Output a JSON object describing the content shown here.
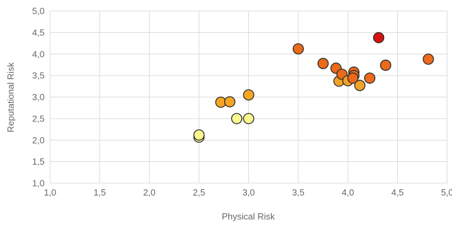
{
  "chart_data": {
    "type": "scatter",
    "title": "",
    "xlabel": "Physical Risk",
    "ylabel": "Reputational Risk",
    "xlim": [
      1.0,
      5.0
    ],
    "ylim": [
      1.0,
      5.0
    ],
    "grid": true,
    "x_ticks": [
      "1,0",
      "1,5",
      "2,0",
      "2,5",
      "3,0",
      "3,5",
      "4,0",
      "4,5",
      "5,0"
    ],
    "y_ticks": [
      "1,0",
      "1,5",
      "2,0",
      "2,5",
      "3,0",
      "3,5",
      "4,0",
      "4,5",
      "5,0"
    ],
    "points": [
      {
        "x": 2.5,
        "y": 2.07,
        "color": "#f0ee9a"
      },
      {
        "x": 2.5,
        "y": 2.12,
        "color": "#fbf78f"
      },
      {
        "x": 2.72,
        "y": 2.88,
        "color": "#f6a623"
      },
      {
        "x": 2.81,
        "y": 2.89,
        "color": "#f6a623"
      },
      {
        "x": 2.88,
        "y": 2.5,
        "color": "#fbf78f"
      },
      {
        "x": 3.0,
        "y": 2.5,
        "color": "#fbf78f"
      },
      {
        "x": 3.0,
        "y": 3.05,
        "color": "#f6a623"
      },
      {
        "x": 3.5,
        "y": 4.12,
        "color": "#ec6a1a"
      },
      {
        "x": 3.75,
        "y": 3.78,
        "color": "#ec6a1a"
      },
      {
        "x": 3.88,
        "y": 3.67,
        "color": "#ec6a1a"
      },
      {
        "x": 3.91,
        "y": 3.37,
        "color": "#f3a228"
      },
      {
        "x": 3.94,
        "y": 3.53,
        "color": "#ec6a1a"
      },
      {
        "x": 4.0,
        "y": 3.38,
        "color": "#f3a228"
      },
      {
        "x": 4.06,
        "y": 3.58,
        "color": "#ec6a1a"
      },
      {
        "x": 4.06,
        "y": 3.5,
        "color": "#ec6a1a"
      },
      {
        "x": 4.05,
        "y": 3.44,
        "color": "#ec6a1a"
      },
      {
        "x": 4.12,
        "y": 3.27,
        "color": "#f3a228"
      },
      {
        "x": 4.22,
        "y": 3.44,
        "color": "#ec6a1a"
      },
      {
        "x": 4.31,
        "y": 4.38,
        "color": "#d81212"
      },
      {
        "x": 4.38,
        "y": 3.74,
        "color": "#ec6a1a"
      },
      {
        "x": 4.81,
        "y": 3.88,
        "color": "#ec6a1a"
      }
    ]
  }
}
